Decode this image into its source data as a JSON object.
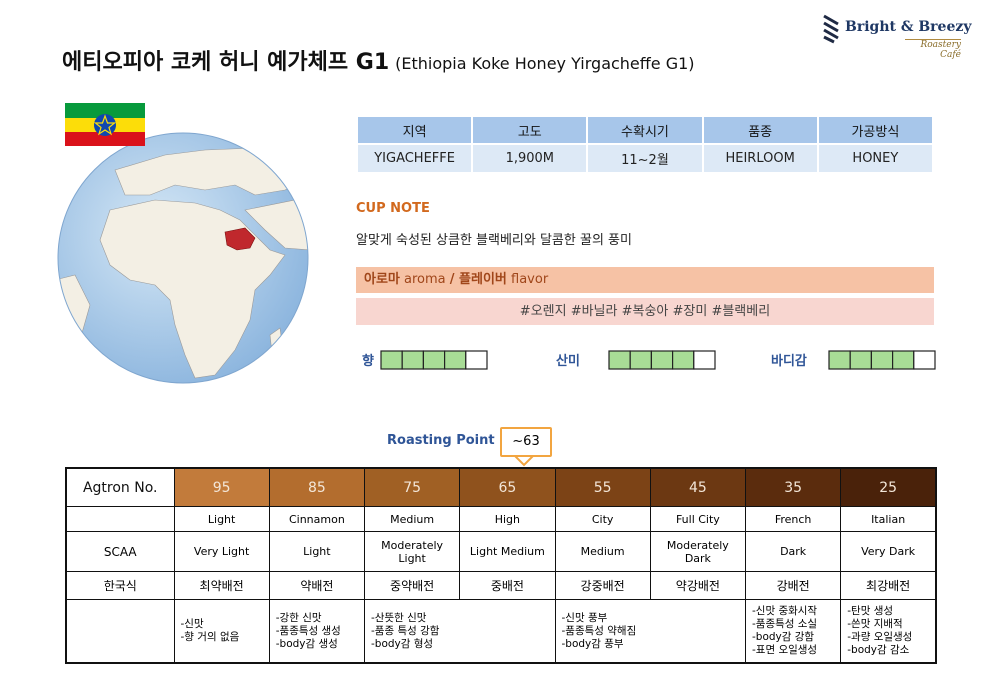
{
  "header": {
    "title": "에티오피아 코케 허니 예가체프 G1",
    "subtitle": "(Ethiopia Koke Honey Yirgacheffe G1)",
    "logo": {
      "name": "Bright & Breezy",
      "tagline": "Roastery Café"
    }
  },
  "info_table": {
    "columns": [
      "지역",
      "고도",
      "수확시기",
      "품종",
      "가공방식"
    ],
    "values": [
      "YIGACHEFFE",
      "1,900M",
      "11~2월",
      "HEIRLOOM",
      "HONEY"
    ]
  },
  "cup_note": {
    "label": "CUP NOTE",
    "description": "알맞게 숙성된 상큼한 블랙베리와 달콤한 꿀의 풍미",
    "aroma_flavor": [
      {
        "text": "아로마",
        "bold": true
      },
      {
        "text": " aroma ",
        "bold": false
      },
      {
        "text": "/ 플레이버",
        "bold": true
      },
      {
        "text": " flavor",
        "bold": false
      }
    ],
    "tags": "#오렌지 #바닐라 #복숭아 #장미 #블랙베리"
  },
  "ratings": [
    {
      "label": "향",
      "value": 4,
      "max": 5
    },
    {
      "label": "산미",
      "value": 4,
      "max": 5
    },
    {
      "label": "바디감",
      "value": 4,
      "max": 5
    }
  ],
  "roasting": {
    "label": "Roasting Point",
    "point": "~63"
  },
  "roast_table": {
    "header_label": "Agtron No.",
    "agtron": [
      95,
      85,
      75,
      65,
      55,
      45,
      35,
      25
    ],
    "agtron_colors": [
      "#c27b3b",
      "#b36d2e",
      "#a06024",
      "#8f521d",
      "#7c4316",
      "#6c3812",
      "#5b2c0d",
      "#4a220a"
    ],
    "names": [
      "Light",
      "Cinnamon",
      "Medium",
      "High",
      "City",
      "Full City",
      "French",
      "Italian"
    ],
    "scaa_label": "SCAA",
    "scaa": [
      "Very Light",
      "Light",
      "Moderately Light",
      "Light Medium",
      "Medium",
      "Moderately Dark",
      "Dark",
      "Very Dark"
    ],
    "korean_label": "한국식",
    "korean": [
      "최약배전",
      "약배전",
      "중약배전",
      "중배전",
      "강중배전",
      "약강배전",
      "강배전",
      "최강배전"
    ],
    "notes": [
      [
        "-신맛",
        "-향 거의 없음"
      ],
      [
        "-강한 신맛",
        "-품종특성 생성",
        "-body감 생성"
      ],
      [
        "-산뜻한 신맛",
        "-품종 특성 강함",
        "-body감 형성"
      ],
      null,
      [
        "-신맛 풍부",
        "-품종특성 약해짐",
        "-body감 풍부"
      ],
      null,
      [
        "-신맛 중화시작",
        "-품종특성 소실",
        "-body감 강함",
        "-표면 오일생성"
      ],
      [
        "-탄맛 생성",
        "-쓴맛 지배적",
        "-과량 오일생성",
        "-body감 감소"
      ]
    ]
  }
}
